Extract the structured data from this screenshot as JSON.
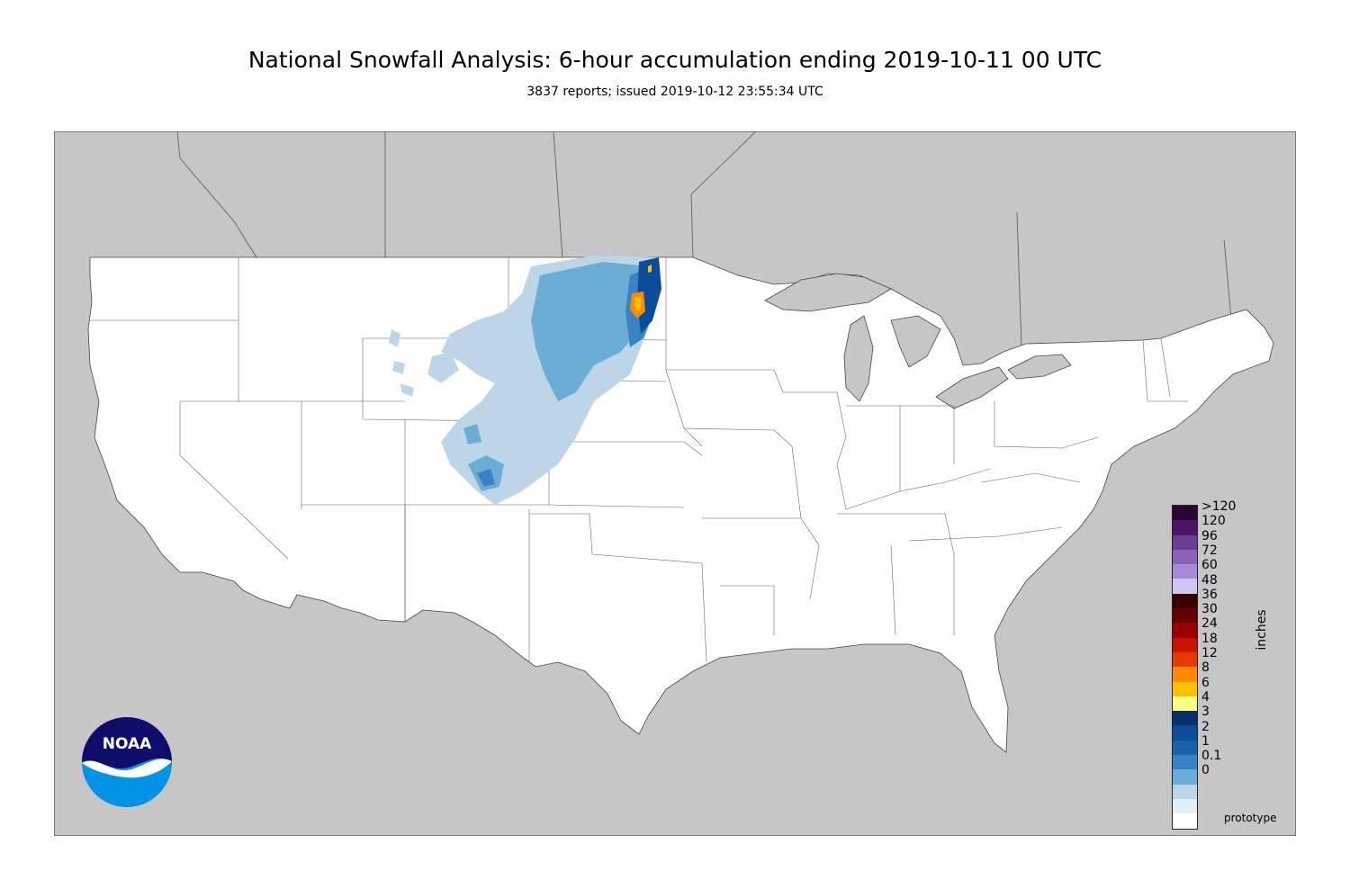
{
  "header": {
    "title": "National Snowfall Analysis: 6-hour accumulation ending 2019-10-11 00 UTC",
    "subtitle": "3837 reports; issued 2019-10-12 23:55:34 UTC"
  },
  "legend": {
    "units": "inches",
    "ticks": [
      ">120",
      "120",
      "96",
      "72",
      "60",
      "48",
      "36",
      "30",
      "24",
      "18",
      "12",
      "8",
      "6",
      "4",
      "3",
      "2",
      "1",
      "0.1",
      "0"
    ],
    "colors": [
      "#2a0533",
      "#4d1463",
      "#6b3d96",
      "#8a62b8",
      "#a78ad6",
      "#cdc6f2",
      "#3a0000",
      "#650000",
      "#990000",
      "#cc1100",
      "#e63a00",
      "#ff8c00",
      "#ffc000",
      "#ffff88",
      "#08306b",
      "#0b4c9a",
      "#1763a8",
      "#3783c4",
      "#6aaed6",
      "#bcd6e8",
      "#e4eef6",
      "#ffffff"
    ]
  },
  "map": {
    "land_color": "#ffffff",
    "background_color": "#c6c6c6",
    "border_color": "#555555"
  },
  "logo": {
    "text": "NOAA",
    "primary_color": "#0e0d6b",
    "secondary_color": "#0093e6"
  },
  "footer": {
    "note": "prototype"
  }
}
